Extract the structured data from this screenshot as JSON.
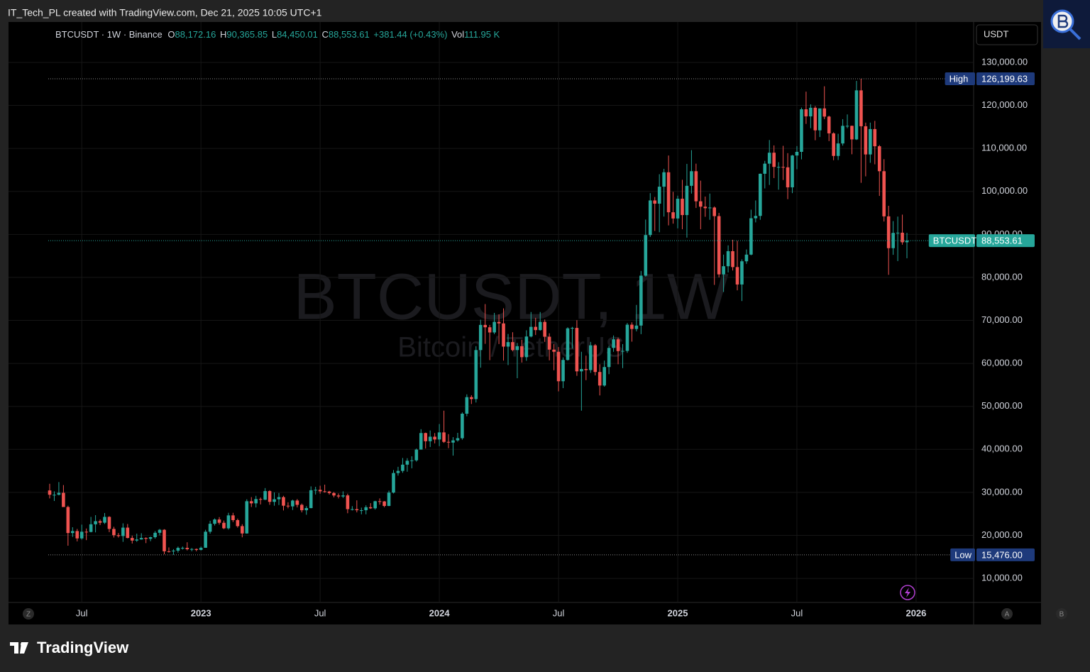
{
  "header": {
    "attribution": "IT_Tech_PL created with TradingView.com, Dec 21, 2025 10:05 UTC+1"
  },
  "footer": {
    "brand": "TradingView"
  },
  "controls": {
    "currency": "USDT",
    "zoom": "Z",
    "auto": "A",
    "log": "B"
  },
  "chart_data": {
    "type": "candlestick",
    "watermark": {
      "title": "BTCUSDT, 1W",
      "subtitle": "Bitcoin / TetherUS"
    },
    "legend": {
      "symbol": "BTCUSDT · 1W · Binance",
      "open": {
        "prefix": "O",
        "label": "88,172.16"
      },
      "high": {
        "prefix": "H",
        "label": "90,365.85"
      },
      "low": {
        "prefix": "L",
        "label": "84,450.01"
      },
      "close": {
        "prefix": "C",
        "label": "88,553.61"
      },
      "change": "+381.44 (+0.43%)",
      "volume": {
        "prefix": "Vol",
        "label": "111.95 K"
      }
    },
    "up_color": "#26a69a",
    "down_color": "#ef5350",
    "ylim": [
      4400,
      139400
    ],
    "yticks": [
      {
        "value": 10000,
        "label": "10,000.00"
      },
      {
        "value": 20000,
        "label": "20,000.00"
      },
      {
        "value": 30000,
        "label": "30,000.00"
      },
      {
        "value": 40000,
        "label": "40,000.00"
      },
      {
        "value": 50000,
        "label": "50,000.00"
      },
      {
        "value": 60000,
        "label": "60,000.00"
      },
      {
        "value": 70000,
        "label": "70,000.00"
      },
      {
        "value": 80000,
        "label": "80,000.00"
      },
      {
        "value": 90000,
        "label": "90,000.00"
      },
      {
        "value": 100000,
        "label": "100,000.00"
      },
      {
        "value": 110000,
        "label": "110,000.00"
      },
      {
        "value": 120000,
        "label": "120,000.00"
      },
      {
        "value": 130000,
        "label": "130,000.00"
      }
    ],
    "xticks": [
      {
        "value": 7,
        "label": "Jul"
      },
      {
        "value": 33,
        "label": "2023"
      },
      {
        "value": 59,
        "label": "Jul"
      },
      {
        "value": 85,
        "label": "2024"
      },
      {
        "value": 111,
        "label": "Jul"
      },
      {
        "value": 137,
        "label": "2025"
      },
      {
        "value": 163,
        "label": "Jul"
      },
      {
        "value": 189,
        "label": "2026"
      }
    ],
    "price_lines": [
      {
        "name": "High",
        "value": 126199.63,
        "label": "126,199.63",
        "color": "#1e3a7b"
      },
      {
        "name": "Low",
        "value": 15476,
        "label": "15,476.00",
        "color": "#1e3a7b"
      },
      {
        "name": "BTCUSDT",
        "value": 88553.61,
        "label": "88,553.61",
        "color": "#26a69a"
      }
    ],
    "ohlc": [
      [
        30450,
        32000,
        28600,
        29450
      ],
      [
        29450,
        30250,
        28000,
        29450
      ],
      [
        29450,
        32400,
        29300,
        29900
      ],
      [
        29900,
        31700,
        26700,
        26600
      ],
      [
        26600,
        26900,
        17600,
        20550
      ],
      [
        20550,
        21900,
        19650,
        21000
      ],
      [
        21000,
        21500,
        18600,
        19300
      ],
      [
        19300,
        22500,
        19000,
        20850
      ],
      [
        20850,
        21600,
        18900,
        20800
      ],
      [
        20800,
        24300,
        20700,
        22580
      ],
      [
        22580,
        24700,
        20700,
        23300
      ],
      [
        23300,
        23700,
        22400,
        22950
      ],
      [
        22950,
        25200,
        22650,
        24300
      ],
      [
        24300,
        24450,
        20750,
        21500
      ],
      [
        21500,
        22000,
        19500,
        20050
      ],
      [
        20050,
        20550,
        19500,
        19850
      ],
      [
        19850,
        22800,
        18500,
        21800
      ],
      [
        21800,
        22650,
        19300,
        19400
      ],
      [
        19400,
        19950,
        18100,
        18800
      ],
      [
        18800,
        20400,
        18500,
        19050
      ],
      [
        19050,
        20500,
        19000,
        19400
      ],
      [
        19400,
        19550,
        18200,
        19200
      ],
      [
        19200,
        19700,
        18650,
        19580
      ],
      [
        19580,
        21000,
        19250,
        20600
      ],
      [
        20600,
        21500,
        20000,
        21300
      ],
      [
        21300,
        21450,
        15600,
        16300
      ],
      [
        16300,
        17200,
        16000,
        16280
      ],
      [
        16280,
        16800,
        15476,
        16450
      ],
      [
        16450,
        17400,
        16000,
        17100
      ],
      [
        17100,
        17400,
        16700,
        17100
      ],
      [
        17100,
        18400,
        16500,
        16780
      ],
      [
        16780,
        17050,
        16300,
        16830
      ],
      [
        16830,
        16950,
        16300,
        16620
      ],
      [
        16620,
        17400,
        16500,
        17120
      ],
      [
        17120,
        21300,
        17100,
        20850
      ],
      [
        20850,
        23400,
        20400,
        22700
      ],
      [
        22700,
        23950,
        22300,
        23700
      ],
      [
        23700,
        24250,
        22500,
        22930
      ],
      [
        22930,
        23450,
        21450,
        21650
      ],
      [
        21650,
        25250,
        21350,
        24650
      ],
      [
        24650,
        25250,
        23100,
        23550
      ],
      [
        23550,
        23900,
        21800,
        22150
      ],
      [
        22150,
        22600,
        19550,
        20450
      ],
      [
        20450,
        28400,
        20400,
        27950
      ],
      [
        27950,
        28900,
        26600,
        27450
      ],
      [
        27450,
        29200,
        26500,
        28450
      ],
      [
        28450,
        28800,
        27200,
        28300
      ],
      [
        28300,
        31000,
        28200,
        30300
      ],
      [
        30300,
        30500,
        27100,
        27800
      ],
      [
        27800,
        30000,
        26900,
        28400
      ],
      [
        28400,
        29850,
        27050,
        28900
      ],
      [
        28900,
        29200,
        25800,
        26900
      ],
      [
        26900,
        27700,
        26300,
        26750
      ],
      [
        26750,
        28300,
        25900,
        28100
      ],
      [
        28100,
        28450,
        26500,
        27100
      ],
      [
        27100,
        27400,
        25350,
        25850
      ],
      [
        25850,
        26800,
        24800,
        26350
      ],
      [
        26350,
        31400,
        26300,
        30500
      ],
      [
        30500,
        31300,
        29500,
        30600
      ],
      [
        30600,
        31550,
        29700,
        30250
      ],
      [
        30250,
        31800,
        29950,
        30200
      ],
      [
        30200,
        30350,
        29500,
        29850
      ],
      [
        29850,
        30100,
        28850,
        29280
      ],
      [
        29280,
        29750,
        28600,
        29050
      ],
      [
        29050,
        30250,
        28700,
        29300
      ],
      [
        29300,
        29700,
        25150,
        26100
      ],
      [
        26100,
        26800,
        25800,
        26100
      ],
      [
        26100,
        28150,
        25350,
        25850
      ],
      [
        25850,
        26450,
        24900,
        25850
      ],
      [
        25850,
        27000,
        24900,
        26550
      ],
      [
        26550,
        27500,
        26150,
        26300
      ],
      [
        26300,
        28050,
        26000,
        27950
      ],
      [
        27950,
        28600,
        27150,
        27900
      ],
      [
        27900,
        28000,
        26550,
        26850
      ],
      [
        26850,
        30400,
        26800,
        29950
      ],
      [
        29950,
        35200,
        29750,
        34500
      ],
      [
        34500,
        35950,
        33900,
        35000
      ],
      [
        35000,
        38000,
        34550,
        36450
      ],
      [
        36450,
        37950,
        34800,
        37350
      ],
      [
        37350,
        38400,
        35600,
        37450
      ],
      [
        37450,
        40200,
        37150,
        39950
      ],
      [
        39950,
        44700,
        39950,
        43800
      ],
      [
        43800,
        43900,
        40200,
        41900
      ],
      [
        41900,
        44400,
        40550,
        42950
      ],
      [
        42950,
        43800,
        41400,
        42300
      ],
      [
        42300,
        45900,
        40750,
        43950
      ],
      [
        43950,
        49000,
        41500,
        41750
      ],
      [
        41750,
        43550,
        40280,
        41580
      ],
      [
        41580,
        42850,
        38550,
        42100
      ],
      [
        42100,
        43850,
        41800,
        42600
      ],
      [
        42600,
        48600,
        42250,
        48300
      ],
      [
        48300,
        52800,
        47700,
        52150
      ],
      [
        52150,
        52600,
        50550,
        51700
      ],
      [
        51700,
        64000,
        50900,
        63100
      ],
      [
        63100,
        70150,
        59000,
        68950
      ],
      [
        68950,
        73800,
        64550,
        68400
      ],
      [
        68400,
        68950,
        60750,
        67200
      ],
      [
        67200,
        71750,
        66800,
        69650
      ],
      [
        69650,
        71400,
        64500,
        69300
      ],
      [
        69300,
        72800,
        60650,
        63900
      ],
      [
        63900,
        66850,
        59600,
        64950
      ],
      [
        64950,
        67250,
        62800,
        63100
      ],
      [
        63100,
        64750,
        56550,
        64000
      ],
      [
        64000,
        65500,
        60200,
        61450
      ],
      [
        61450,
        67700,
        60600,
        66250
      ],
      [
        66250,
        71950,
        66050,
        68500
      ],
      [
        68500,
        70600,
        66600,
        67750
      ],
      [
        67750,
        71950,
        67600,
        69650
      ],
      [
        69650,
        70200,
        65000,
        66200
      ],
      [
        66200,
        67000,
        60700,
        63200
      ],
      [
        63200,
        64500,
        58400,
        62700
      ],
      [
        62700,
        63800,
        53500,
        55850
      ],
      [
        55850,
        61400,
        54250,
        60800
      ],
      [
        60800,
        68400,
        60650,
        68150
      ],
      [
        68150,
        68500,
        63450,
        68250
      ],
      [
        68250,
        70050,
        57100,
        58150
      ],
      [
        58150,
        62700,
        49000,
        58700
      ],
      [
        58700,
        61800,
        56100,
        58450
      ],
      [
        58450,
        65000,
        57800,
        64200
      ],
      [
        64200,
        64500,
        57200,
        58000
      ],
      [
        58000,
        59800,
        52550,
        54850
      ],
      [
        54850,
        60650,
        54600,
        59150
      ],
      [
        59150,
        64100,
        57500,
        63600
      ],
      [
        63600,
        66500,
        62700,
        65600
      ],
      [
        65600,
        66000,
        59800,
        62850
      ],
      [
        62850,
        64500,
        58900,
        62900
      ],
      [
        62900,
        69400,
        62450,
        69000
      ],
      [
        69000,
        69550,
        65050,
        68000
      ],
      [
        68000,
        73600,
        67450,
        68800
      ],
      [
        68800,
        81500,
        66800,
        80400
      ],
      [
        80400,
        93450,
        80200,
        89850
      ],
      [
        89850,
        99600,
        89400,
        97900
      ],
      [
        97900,
        98700,
        90800,
        97150
      ],
      [
        97150,
        104000,
        90500,
        101100
      ],
      [
        101100,
        105250,
        94150,
        104450
      ],
      [
        104450,
        108350,
        92100,
        95150
      ],
      [
        95150,
        99900,
        92500,
        93700
      ],
      [
        93700,
        99000,
        91400,
        98300
      ],
      [
        98300,
        102700,
        91200,
        94500
      ],
      [
        94500,
        106400,
        89250,
        101300
      ],
      [
        101300,
        109600,
        99500,
        104700
      ],
      [
        104700,
        106450,
        96150,
        97700
      ],
      [
        97700,
        102500,
        91200,
        96450
      ],
      [
        96450,
        98800,
        94100,
        96100
      ],
      [
        96100,
        99500,
        93400,
        96250
      ],
      [
        96250,
        96500,
        78250,
        94250
      ],
      [
        94250,
        95000,
        80000,
        80700
      ],
      [
        80700,
        85300,
        76600,
        82600
      ],
      [
        82600,
        87450,
        81150,
        86100
      ],
      [
        86100,
        88750,
        81600,
        82400
      ],
      [
        82400,
        88500,
        77000,
        78350
      ],
      [
        78350,
        84200,
        74500,
        83750
      ],
      [
        83750,
        86500,
        83150,
        85300
      ],
      [
        85300,
        95750,
        85150,
        93750
      ],
      [
        93750,
        97900,
        92800,
        94300
      ],
      [
        94300,
        104150,
        93400,
        104100
      ],
      [
        104100,
        107100,
        100700,
        106450
      ],
      [
        106450,
        111950,
        101500,
        109000
      ],
      [
        109000,
        110700,
        103100,
        105700
      ],
      [
        105700,
        106800,
        100400,
        105700
      ],
      [
        105700,
        110600,
        102650,
        105600
      ],
      [
        105600,
        108900,
        98200,
        100950
      ],
      [
        100950,
        108500,
        99600,
        108350
      ],
      [
        108350,
        110550,
        105150,
        109200
      ],
      [
        109200,
        119500,
        107450,
        119100
      ],
      [
        119100,
        123200,
        115700,
        117450
      ],
      [
        117450,
        120250,
        114700,
        119450
      ],
      [
        119450,
        119850,
        111900,
        114200
      ],
      [
        114200,
        119300,
        112650,
        119300
      ],
      [
        119300,
        124450,
        116800,
        117400
      ],
      [
        117400,
        117600,
        111700,
        113500
      ],
      [
        113500,
        113750,
        107250,
        108250
      ],
      [
        108250,
        113400,
        107300,
        111150
      ],
      [
        111150,
        116800,
        110650,
        115250
      ],
      [
        115250,
        117900,
        114700,
        115250
      ],
      [
        115250,
        115300,
        108650,
        112100
      ],
      [
        112100,
        125700,
        111950,
        123500
      ],
      [
        123500,
        126199.63,
        102000,
        115150
      ],
      [
        115150,
        116000,
        103500,
        108600
      ],
      [
        108600,
        116000,
        106650,
        114500
      ],
      [
        114500,
        116400,
        106300,
        110500
      ],
      [
        110500,
        110800,
        98950,
        104700
      ],
      [
        104700,
        107500,
        93000,
        94200
      ],
      [
        94200,
        96650,
        80600,
        86800
      ],
      [
        86800,
        93100,
        85250,
        90350
      ],
      [
        90350,
        94150,
        83800,
        90400
      ],
      [
        90400,
        94600,
        87600,
        88172.16
      ],
      [
        88172.16,
        90365.85,
        84450.01,
        88553.61
      ]
    ]
  }
}
